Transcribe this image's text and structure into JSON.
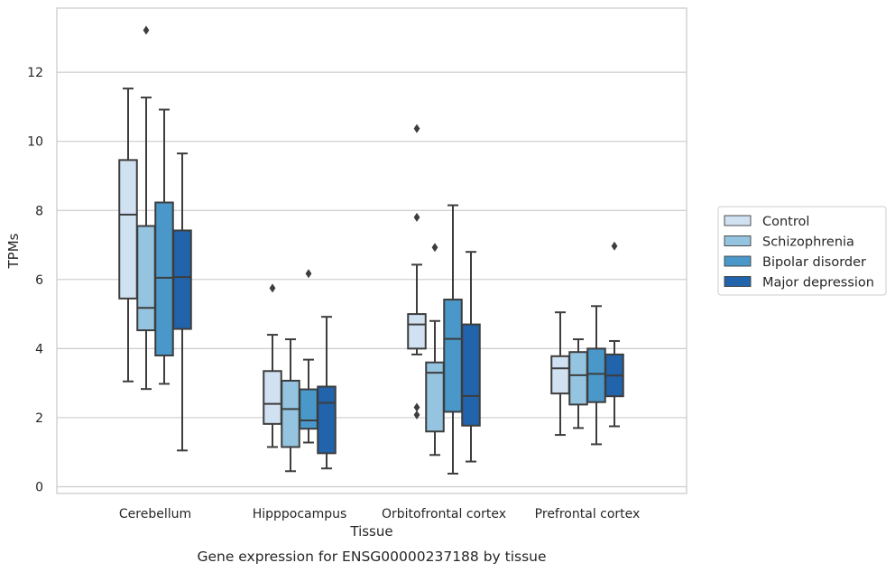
{
  "chart_data": {
    "type": "box",
    "caption": "Gene expression for ENSG00000237188 by tissue",
    "xlabel": "Tissue",
    "ylabel": "TPMs",
    "ylim": [
      -0.2,
      13.7
    ],
    "yticks": [
      0,
      2,
      4,
      6,
      8,
      10,
      12
    ],
    "grid": "horizontal",
    "legend_position": "right",
    "categories": [
      "Cerebellum",
      "Hipppocampus",
      "Orbitofrontal cortex",
      "Prefrontal cortex"
    ],
    "series": [
      {
        "name": "Control",
        "color": "#d0e1f2",
        "boxes": [
          {
            "whislo": 3.05,
            "q1": 5.45,
            "med": 7.88,
            "q3": 9.46,
            "whishi": 11.53,
            "fliers": []
          },
          {
            "whislo": 1.15,
            "q1": 1.82,
            "med": 2.4,
            "q3": 3.35,
            "whishi": 4.4,
            "fliers": [
              5.75
            ]
          },
          {
            "whislo": 3.83,
            "q1": 4.0,
            "med": 4.7,
            "q3": 5.0,
            "whishi": 6.43,
            "fliers": [
              10.37,
              7.8,
              2.3,
              2.08
            ]
          },
          {
            "whislo": 1.5,
            "q1": 2.7,
            "med": 3.43,
            "q3": 3.78,
            "whishi": 5.05,
            "fliers": []
          }
        ]
      },
      {
        "name": "Schizophrenia",
        "color": "#94c4df",
        "boxes": [
          {
            "whislo": 2.83,
            "q1": 4.53,
            "med": 5.18,
            "q3": 7.55,
            "whishi": 11.27,
            "fliers": [
              13.22
            ]
          },
          {
            "whislo": 0.45,
            "q1": 1.15,
            "med": 2.25,
            "q3": 3.07,
            "whishi": 4.27,
            "fliers": []
          },
          {
            "whislo": 0.92,
            "q1": 1.6,
            "med": 3.3,
            "q3": 3.6,
            "whishi": 4.8,
            "fliers": [
              6.93
            ]
          },
          {
            "whislo": 1.7,
            "q1": 2.38,
            "med": 3.23,
            "q3": 3.9,
            "whishi": 4.27,
            "fliers": []
          }
        ]
      },
      {
        "name": "Bipolar disorder",
        "color": "#4a98c9",
        "boxes": [
          {
            "whislo": 2.98,
            "q1": 3.8,
            "med": 6.05,
            "q3": 8.23,
            "whishi": 10.92,
            "fliers": []
          },
          {
            "whislo": 1.28,
            "q1": 1.68,
            "med": 1.92,
            "q3": 2.82,
            "whishi": 3.68,
            "fliers": [
              6.17
            ]
          },
          {
            "whislo": 0.38,
            "q1": 2.17,
            "med": 4.28,
            "q3": 5.42,
            "whishi": 8.15,
            "fliers": []
          },
          {
            "whislo": 1.23,
            "q1": 2.45,
            "med": 3.27,
            "q3": 4.0,
            "whishi": 5.23,
            "fliers": []
          }
        ]
      },
      {
        "name": "Major depression",
        "color": "#2164ab",
        "boxes": [
          {
            "whislo": 1.05,
            "q1": 4.57,
            "med": 6.07,
            "q3": 7.42,
            "whishi": 9.65,
            "fliers": []
          },
          {
            "whislo": 0.53,
            "q1": 0.97,
            "med": 2.43,
            "q3": 2.9,
            "whishi": 4.92,
            "fliers": []
          },
          {
            "whislo": 0.73,
            "q1": 1.77,
            "med": 2.63,
            "q3": 4.7,
            "whishi": 6.8,
            "fliers": []
          },
          {
            "whislo": 1.75,
            "q1": 2.62,
            "med": 3.22,
            "q3": 3.83,
            "whishi": 4.22,
            "fliers": [
              6.97
            ]
          }
        ]
      }
    ]
  }
}
